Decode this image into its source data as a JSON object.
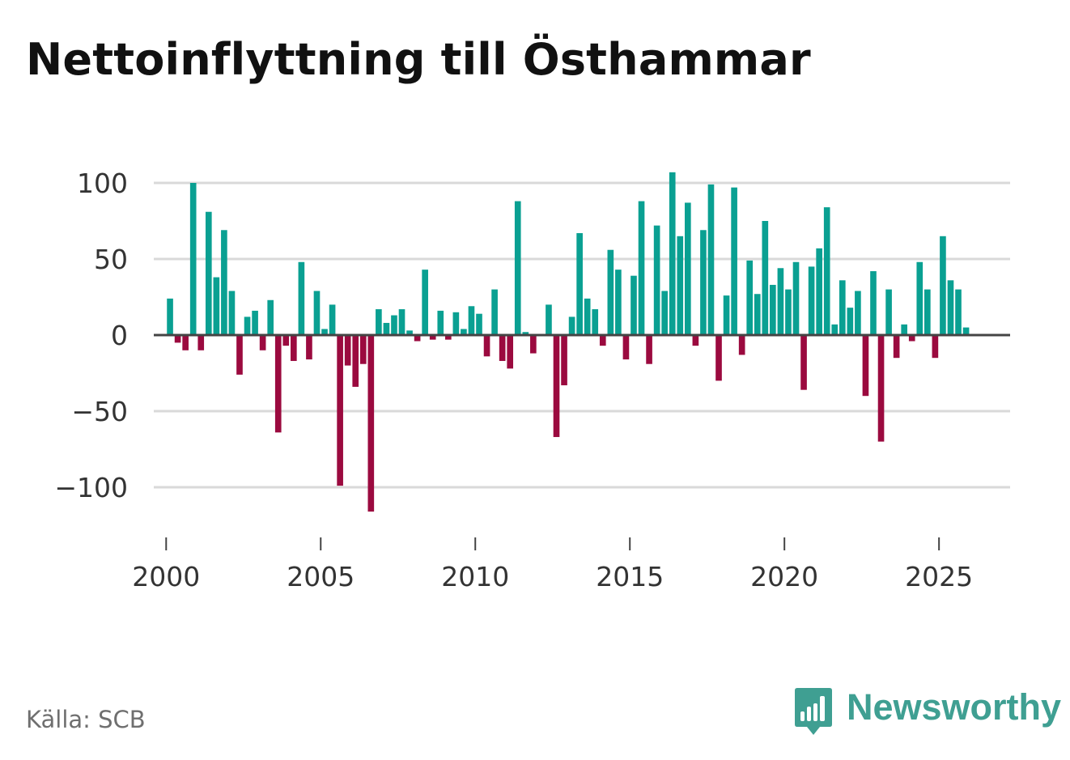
{
  "title": "Nettoinflyttning till Östhammar",
  "source": "Källa: SCB",
  "brand": {
    "name": "Newsworthy",
    "logo_icon": "bar-chart-speech-bubble-icon"
  },
  "colors": {
    "positive": "#0aa092",
    "negative": "#9b0a3f",
    "grid": "#d9d9d9",
    "zero_line": "#444444",
    "brand": "#3f9f92"
  },
  "chart_data": {
    "type": "bar",
    "title": "Nettoinflyttning till Östhammar",
    "xlabel": "",
    "ylabel": "",
    "frequency": "quarterly",
    "first_period": [
      2000,
      1
    ],
    "xlim": [
      1999.6,
      2027.3
    ],
    "ylim": [
      -127,
      110
    ],
    "xticks": [
      2000,
      2005,
      2010,
      2015,
      2020,
      2025
    ],
    "ytick_values": [
      -100,
      -50,
      0,
      50,
      100
    ],
    "ytick_labels": [
      "−100",
      "−50",
      "0",
      "50",
      "100"
    ],
    "grid": true,
    "values": [
      24,
      -5,
      -10,
      100,
      -10,
      81,
      38,
      69,
      29,
      -26,
      12,
      16,
      -10,
      23,
      -64,
      -7,
      -17,
      48,
      -16,
      29,
      4,
      20,
      -99,
      -20,
      -34,
      -19,
      -116,
      17,
      8,
      13,
      17,
      3,
      -4,
      43,
      -3,
      16,
      -3,
      15,
      4,
      19,
      14,
      -14,
      30,
      -17,
      -22,
      88,
      2,
      -12,
      0,
      20,
      -67,
      -33,
      12,
      67,
      24,
      17,
      -7,
      56,
      43,
      -16,
      39,
      88,
      -19,
      72,
      29,
      107,
      65,
      87,
      -7,
      69,
      99,
      -30,
      26,
      97,
      -13,
      49,
      27,
      75,
      33,
      44,
      30,
      48,
      -36,
      45,
      57,
      84,
      7,
      36,
      18,
      29,
      -40,
      42,
      -70,
      30,
      -15,
      7,
      -4,
      48,
      30,
      -15,
      65,
      36,
      30,
      5
    ]
  }
}
